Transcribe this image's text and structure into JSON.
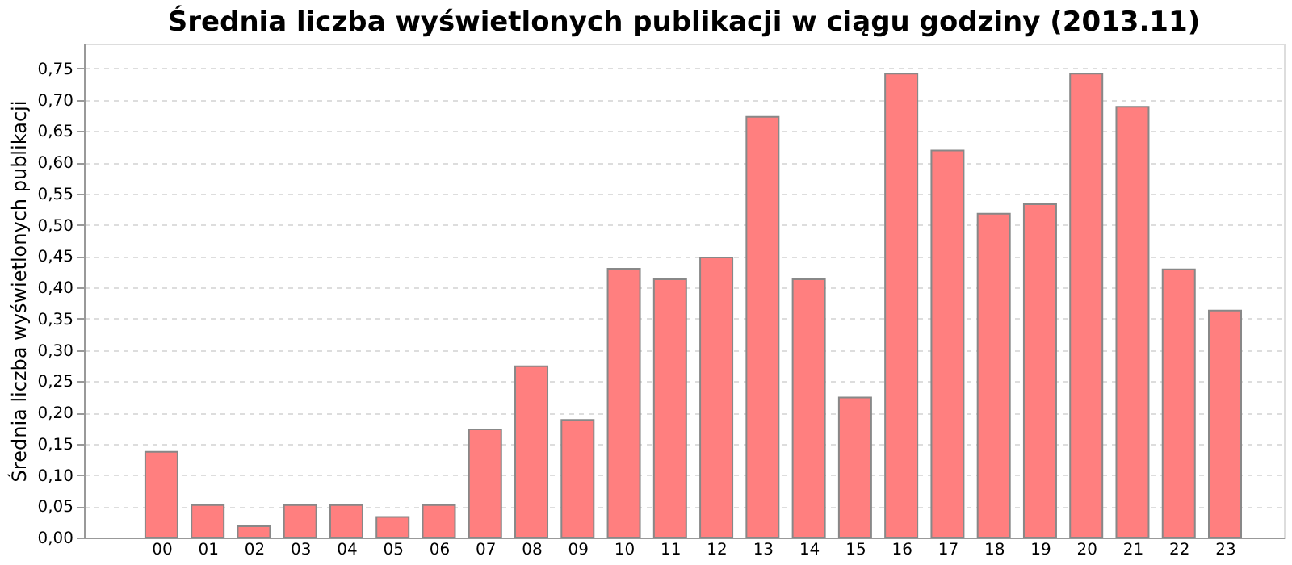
{
  "chart_data": {
    "type": "bar",
    "title": "Średnia liczba wyświetlonych publikacji w ciągu godziny (2013.11)",
    "ylabel": "Średnia liczba wyświetlonych publikacji",
    "categories": [
      "00",
      "01",
      "02",
      "03",
      "04",
      "05",
      "06",
      "07",
      "08",
      "09",
      "10",
      "11",
      "12",
      "13",
      "14",
      "15",
      "16",
      "17",
      "18",
      "19",
      "20",
      "21",
      "22",
      "23"
    ],
    "values": [
      0.137,
      0.052,
      0.018,
      0.052,
      0.052,
      0.033,
      0.052,
      0.173,
      0.274,
      0.188,
      0.43,
      0.413,
      0.448,
      0.673,
      0.413,
      0.224,
      0.742,
      0.619,
      0.518,
      0.533,
      0.742,
      0.689,
      0.429,
      0.363
    ],
    "color": "#ff7f7f",
    "ylim": [
      0,
      0.79
    ],
    "yticks": [
      {
        "value": 0,
        "label": "0,00"
      },
      {
        "value": 0.05,
        "label": "0,05"
      },
      {
        "value": 0.1,
        "label": "0,10"
      },
      {
        "value": 0.15,
        "label": "0,15"
      },
      {
        "value": 0.2,
        "label": "0,20"
      },
      {
        "value": 0.25,
        "label": "0,25"
      },
      {
        "value": 0.3,
        "label": "0,30"
      },
      {
        "value": 0.35,
        "label": "0,35"
      },
      {
        "value": 0.4,
        "label": "0,40"
      },
      {
        "value": 0.45,
        "label": "0,45"
      },
      {
        "value": 0.5,
        "label": "0,50"
      },
      {
        "value": 0.55,
        "label": "0,55"
      },
      {
        "value": 0.6,
        "label": "0,60"
      },
      {
        "value": 0.65,
        "label": "0,65"
      },
      {
        "value": 0.7,
        "label": "0,70"
      },
      {
        "value": 0.75,
        "label": "0,75"
      }
    ],
    "grid": "y"
  }
}
